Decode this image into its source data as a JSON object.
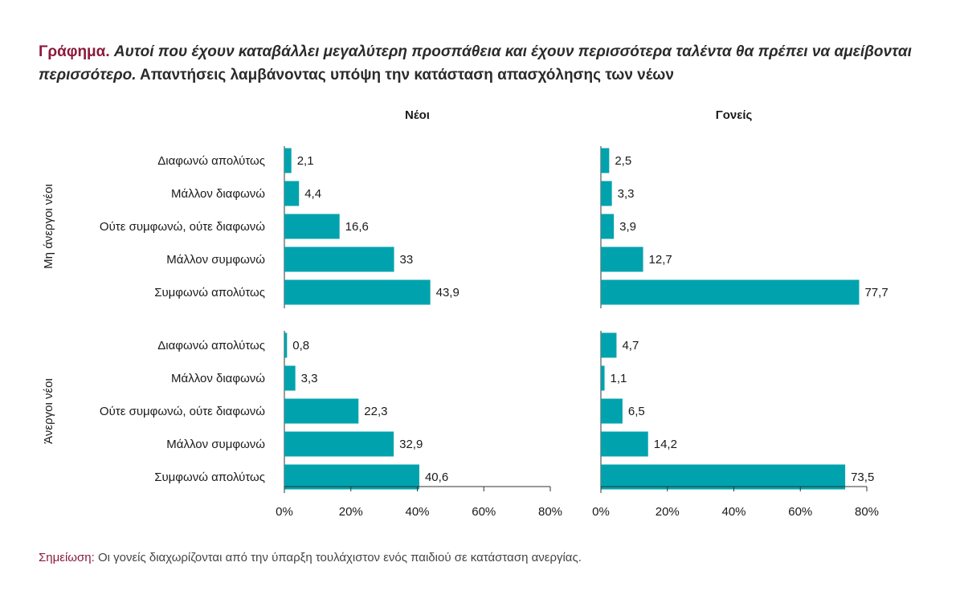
{
  "title": {
    "prefix": "Γράφημα.",
    "italic": "Αυτοί που έχουν καταβάλλει μεγαλύτερη προσπάθεια και έχουν περισσότερα ταλέντα θα πρέπει να αμείβονται περισσότερο.",
    "rest": "Απαντήσεις λαμβάνοντας υπόψη την κατάσταση απασχόλησης των νέων"
  },
  "note": {
    "label": "Σημείωση:",
    "text": "Οι γονείς διαχωρίζονται από την ύπαρξη τουλάχιστον ενός παιδιού σε κατάσταση ανεργίας."
  },
  "colors": {
    "bar": "#00a3ad",
    "axis": "#333333",
    "title_accent": "#8b1a3a"
  },
  "chart_data": {
    "type": "bar",
    "orientation": "horizontal",
    "categories": [
      "Διαφωνώ απολύτως",
      "Μάλλον διαφωνώ",
      "Ούτε συμφωνώ, ούτε διαφωνώ",
      "Μάλλον συμφωνώ",
      "Συμφωνώ απολύτως"
    ],
    "groups": [
      "Μη άνεργοι νέοι",
      "Άνεργοι νέοι"
    ],
    "panels": [
      {
        "title": "Νέοι",
        "series": [
          {
            "group": "Μη άνεργοι νέοι",
            "values": [
              2.1,
              4.4,
              16.6,
              33,
              43.9
            ],
            "labels": [
              "2,1",
              "4,4",
              "16,6",
              "33",
              "43,9"
            ]
          },
          {
            "group": "Άνεργοι νέοι",
            "values": [
              0.8,
              3.3,
              22.3,
              32.9,
              40.6
            ],
            "labels": [
              "0,8",
              "3,3",
              "22,3",
              "32,9",
              "40,6"
            ]
          }
        ]
      },
      {
        "title": "Γονείς",
        "series": [
          {
            "group": "Μη άνεργοι νέοι",
            "values": [
              2.5,
              3.3,
              3.9,
              12.7,
              77.7
            ],
            "labels": [
              "2,5",
              "3,3",
              "3,9",
              "12,7",
              "77,7"
            ]
          },
          {
            "group": "Άνεργοι νέοι",
            "values": [
              4.7,
              1.1,
              6.5,
              14.2,
              73.5
            ],
            "labels": [
              "4,7",
              "1,1",
              "6,5",
              "14,2",
              "73,5"
            ]
          }
        ]
      }
    ],
    "xlim": [
      0,
      80
    ],
    "xticks": [
      0,
      20,
      40,
      60,
      80
    ],
    "xtick_labels": [
      "0%",
      "20%",
      "40%",
      "60%",
      "80%"
    ],
    "grid": false,
    "legend": "none"
  }
}
